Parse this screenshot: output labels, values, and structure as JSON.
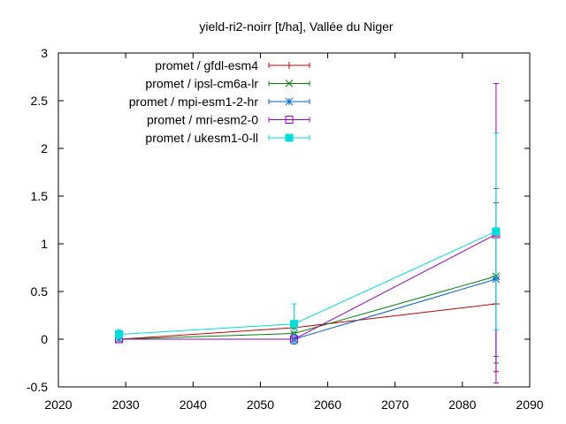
{
  "chart_data": {
    "type": "line",
    "title": "yield-ri2-noirr [t/ha], Vallée du Niger",
    "xlabel": "",
    "ylabel": "",
    "xlim": [
      2020,
      2090
    ],
    "ylim": [
      -0.5,
      3
    ],
    "x_ticks": [
      "2020",
      "2030",
      "2040",
      "2050",
      "2060",
      "2070",
      "2080",
      "2090"
    ],
    "y_ticks": [
      "-0.5",
      "0",
      "0.5",
      "1",
      "1.5",
      "2",
      "2.5",
      "3"
    ],
    "grid": false,
    "legend_position": "top-left",
    "x": [
      2029,
      2055,
      2085
    ],
    "series": [
      {
        "name": "promet / gfdl-esm4",
        "color": "#cc0000",
        "marker": "plus",
        "values": [
          0.0,
          0.12,
          0.37
        ],
        "err_low": [
          0.0,
          0.07,
          -0.34
        ],
        "err_high": [
          0.0,
          0.17,
          1.08
        ]
      },
      {
        "name": "promet / ipsl-cm6a-lr",
        "color": "#008800",
        "marker": "cross",
        "values": [
          0.0,
          0.06,
          0.66
        ],
        "err_low": [
          0.0,
          0.01,
          -0.25
        ],
        "err_high": [
          0.0,
          0.11,
          1.58
        ]
      },
      {
        "name": "promet / mpi-esm1-2-hr",
        "color": "#0066cc",
        "marker": "star",
        "values": [
          0.0,
          0.0,
          0.63
        ],
        "err_low": [
          0.0,
          -0.05,
          -0.18
        ],
        "err_high": [
          0.0,
          0.05,
          1.43
        ]
      },
      {
        "name": "promet / mri-esm2-0",
        "color": "#9900cc",
        "marker": "square",
        "values": [
          0.0,
          0.0,
          1.1
        ],
        "err_low": [
          0.0,
          -0.02,
          -0.46
        ],
        "err_high": [
          0.0,
          0.02,
          2.68
        ]
      },
      {
        "name": "promet / ukesm1-0-ll",
        "color": "#00dddd",
        "marker": "filled-square",
        "values": [
          0.05,
          0.16,
          1.13
        ],
        "err_low": [
          0.0,
          -0.04,
          0.1
        ],
        "err_high": [
          0.1,
          0.37,
          2.16
        ]
      }
    ]
  }
}
